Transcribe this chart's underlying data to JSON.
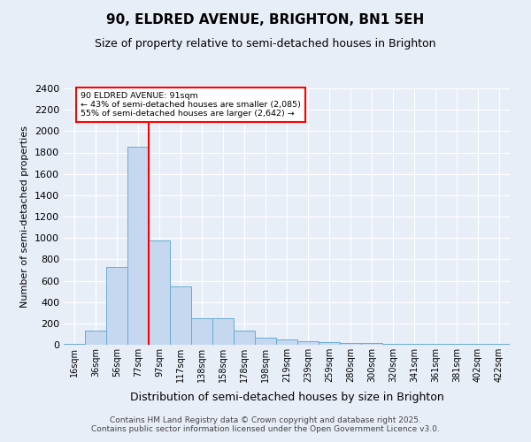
{
  "title": "90, ELDRED AVENUE, BRIGHTON, BN1 5EH",
  "subtitle": "Size of property relative to semi-detached houses in Brighton",
  "xlabel": "Distribution of semi-detached houses by size in Brighton",
  "ylabel": "Number of semi-detached properties",
  "footer": "Contains HM Land Registry data © Crown copyright and database right 2025.\nContains public sector information licensed under the Open Government Licence v3.0.",
  "bin_labels": [
    "16sqm",
    "36sqm",
    "56sqm",
    "77sqm",
    "97sqm",
    "117sqm",
    "138sqm",
    "158sqm",
    "178sqm",
    "198sqm",
    "219sqm",
    "239sqm",
    "259sqm",
    "280sqm",
    "300sqm",
    "320sqm",
    "341sqm",
    "361sqm",
    "381sqm",
    "402sqm",
    "422sqm"
  ],
  "bar_values": [
    10,
    130,
    730,
    1850,
    980,
    550,
    245,
    245,
    130,
    70,
    50,
    30,
    25,
    20,
    15,
    10,
    5,
    5,
    5,
    5,
    5
  ],
  "bar_color": "#c5d8f0",
  "bar_edgecolor": "#6aaad4",
  "vline_index": 3.5,
  "vline_color": "red",
  "annotation_text": "90 ELDRED AVENUE: 91sqm\n← 43% of semi-detached houses are smaller (2,085)\n55% of semi-detached houses are larger (2,642) →",
  "annotation_box_color": "white",
  "annotation_box_edgecolor": "red",
  "ylim": [
    0,
    2400
  ],
  "yticks": [
    0,
    200,
    400,
    600,
    800,
    1000,
    1200,
    1400,
    1600,
    1800,
    2000,
    2200,
    2400
  ],
  "bg_color": "#e8eef8",
  "plot_bg_color": "#e8eef8",
  "grid_color": "white",
  "title_fontsize": 11,
  "subtitle_fontsize": 9,
  "ylabel_fontsize": 8,
  "xlabel_fontsize": 9,
  "tick_fontsize": 7,
  "footer_fontsize": 6.5
}
